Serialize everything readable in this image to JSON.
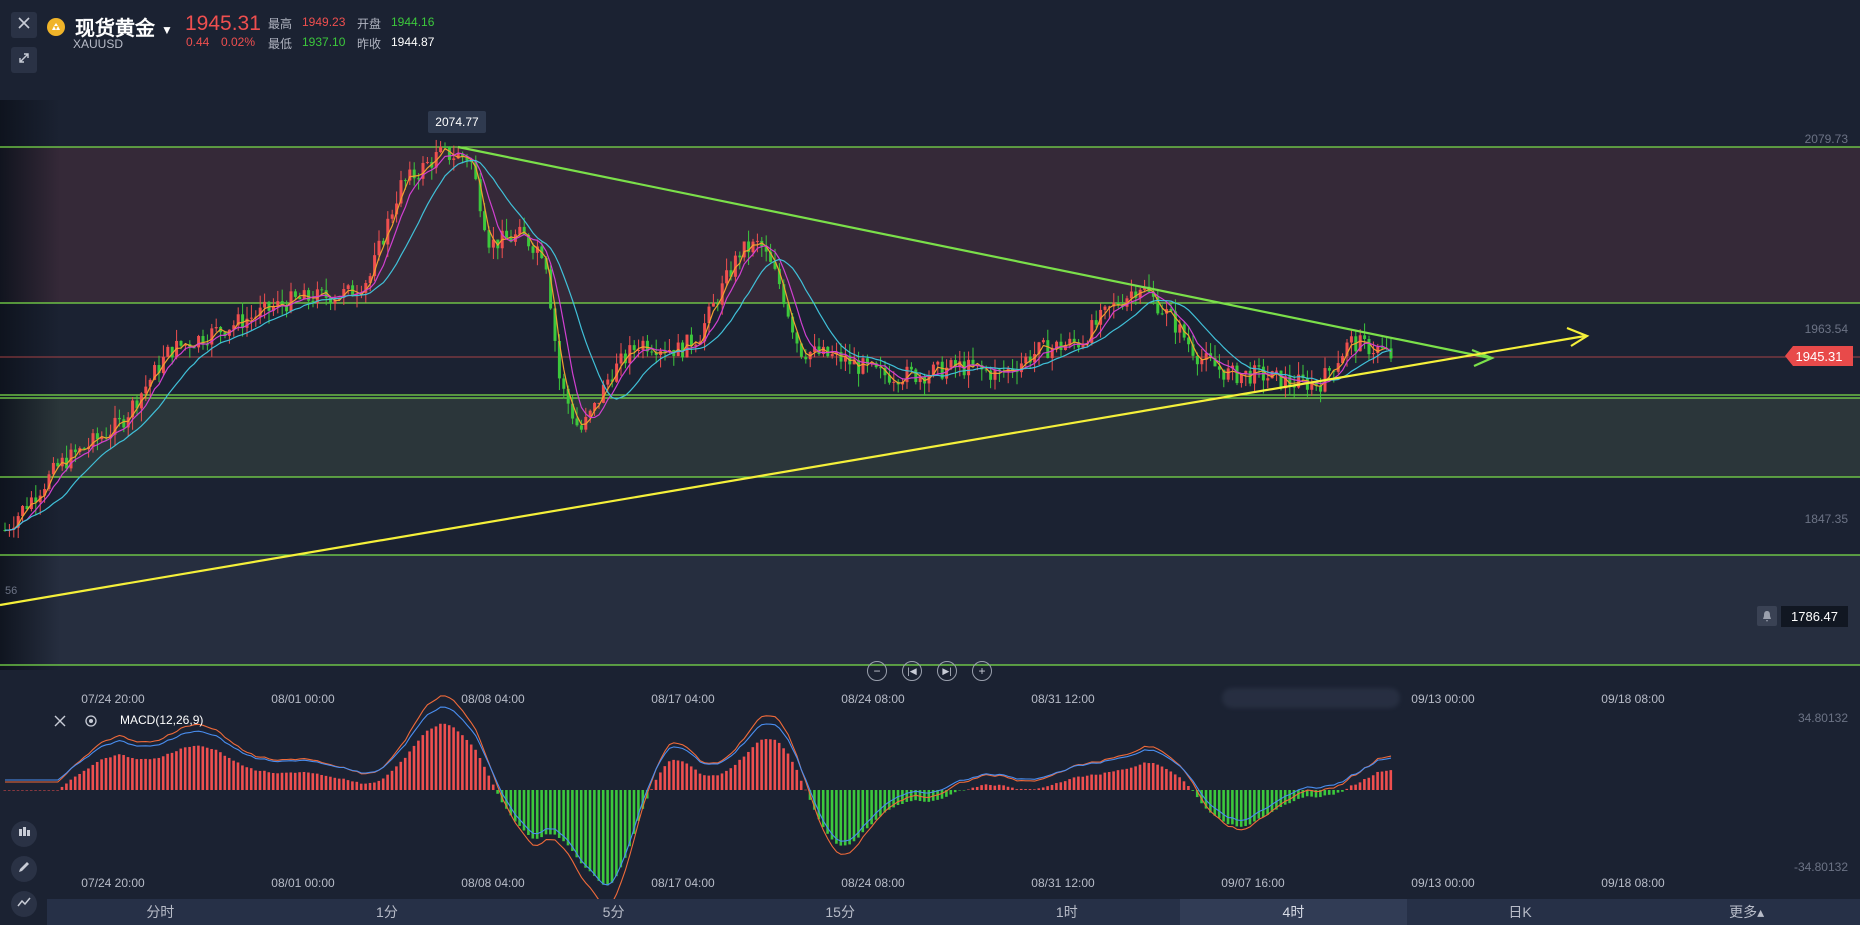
{
  "header": {
    "title": "现货黄金",
    "code": "XAUUSD",
    "price": "1945.31",
    "change": "0.44",
    "change_pct": "0.02%",
    "high_label": "最高",
    "high": "1949.23",
    "low_label": "最低",
    "low": "1937.10",
    "open_label": "开盘",
    "open": "1944.16",
    "prev_close_label": "昨收",
    "prev_close": "1944.87"
  },
  "price_axis": [
    "2079.73",
    "1963.54",
    "1847.35"
  ],
  "current_price_tag": "1945.31",
  "alert_price": "1786.47",
  "peak_label": "2074.77",
  "left_axis_fragment": "56",
  "x_axis_labels": [
    "07/24 20:00",
    "08/01 00:00",
    "08/08 04:00",
    "08/17 04:00",
    "08/24 08:00",
    "08/31 12:00",
    "09/13 00:00",
    "09/18 08:00"
  ],
  "x_axis_labels_bottom": [
    "07/24 20:00",
    "08/01 00:00",
    "08/08 04:00",
    "08/17 04:00",
    "08/24 08:00",
    "08/31 12:00",
    "09/07 16:00",
    "09/13 00:00",
    "09/18 08:00"
  ],
  "macd": {
    "label": "MACD(12,26,9)",
    "max": "34.80132",
    "min": "-34.80132"
  },
  "timeframes": [
    {
      "label": "分时",
      "active": false
    },
    {
      "label": "1分",
      "active": false
    },
    {
      "label": "5分",
      "active": false
    },
    {
      "label": "15分",
      "active": false
    },
    {
      "label": "1时",
      "active": false
    },
    {
      "label": "4时",
      "active": true
    },
    {
      "label": "日K",
      "active": false
    },
    {
      "label": "更多▴",
      "active": false
    }
  ],
  "colors": {
    "background": "#1b2232",
    "up": "#ef4f4f",
    "down": "#3cc83c",
    "resistance_zone": "#3a2a3a",
    "support_zone": "#2e3a3c",
    "trend_down": "#7be04a",
    "trend_up": "#f5f03a",
    "ma_orange": "#f0a030",
    "ma_magenta": "#d040d0",
    "ma_cyan": "#40c0d8"
  }
}
